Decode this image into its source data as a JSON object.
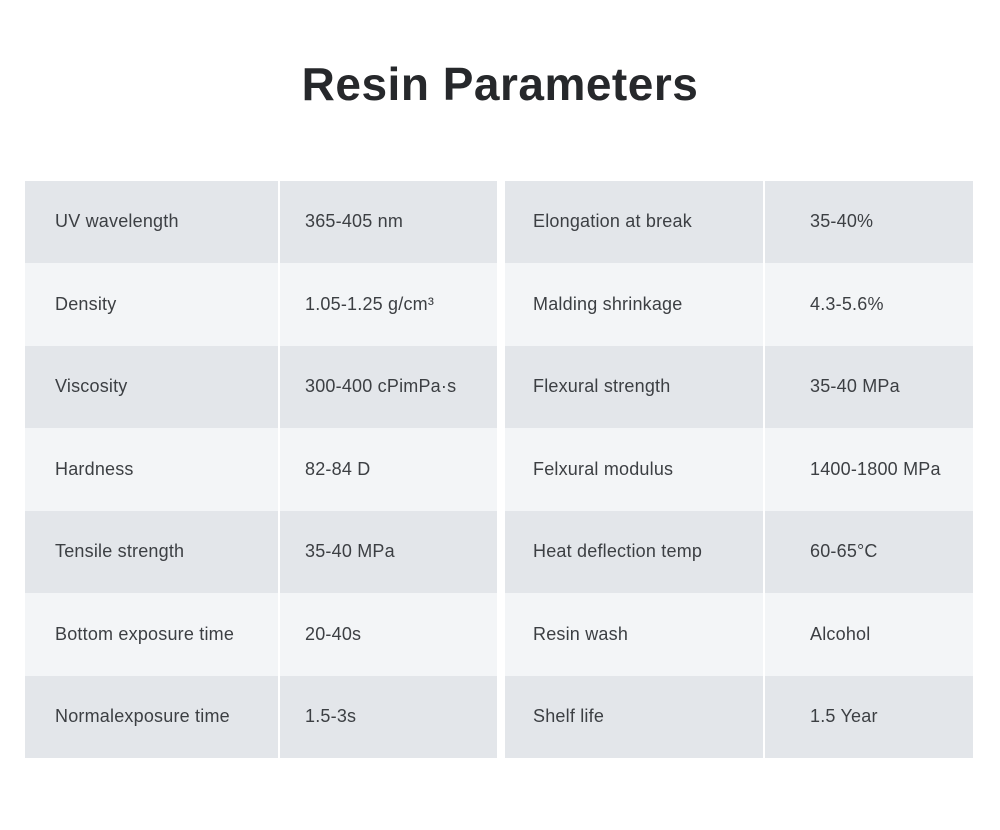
{
  "title": "Resin Parameters",
  "table": {
    "left": {
      "rows": [
        {
          "label": "UV wavelength",
          "value": "365-405 nm"
        },
        {
          "label": "Density",
          "value": "1.05-1.25 g/cm³"
        },
        {
          "label": "Viscosity",
          "value": "300-400 cPimPa·s"
        },
        {
          "label": "Hardness",
          "value": "82-84 D"
        },
        {
          "label": "Tensile strength",
          "value": "35-40 MPa"
        },
        {
          "label": "Bottom exposure time",
          "value": "20-40s"
        },
        {
          "label": "Normalexposure time",
          "value": "1.5-3s"
        }
      ]
    },
    "right": {
      "rows": [
        {
          "label": "Elongation at break",
          "value": "35-40%"
        },
        {
          "label": "Malding shrinkage",
          "value": "4.3-5.6%"
        },
        {
          "label": "Flexural strength",
          "value": "35-40 MPa"
        },
        {
          "label": "Felxural modulus",
          "value": "1400-1800 MPa"
        },
        {
          "label": "Heat deflection temp",
          "value": "60-65°C"
        },
        {
          "label": "Resin wash",
          "value": "Alcohol"
        },
        {
          "label": "Shelf life",
          "value": "1.5 Year"
        }
      ]
    }
  },
  "colors": {
    "row_dark": "#e3e6ea",
    "row_light": "#f3f5f7",
    "text": "#3c3f43",
    "title": "#26282b",
    "divider": "#ffffff",
    "page_bg": "#ffffff"
  }
}
